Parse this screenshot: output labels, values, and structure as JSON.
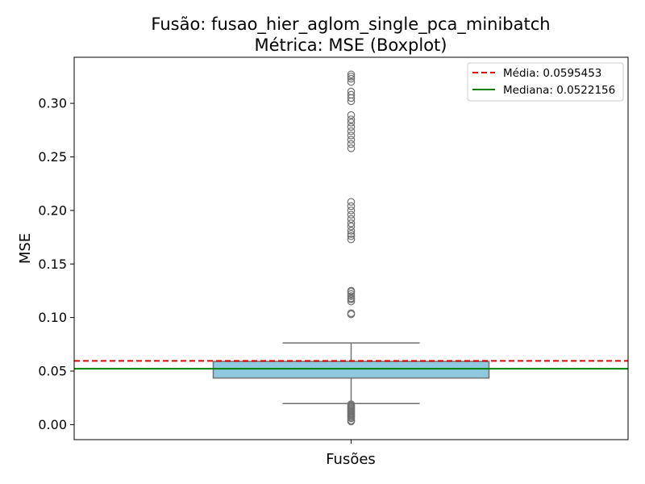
{
  "chart_data": {
    "type": "box",
    "title_line1": "Fusão: fusao_hier_aglom_single_pca_minibatch",
    "title_line2": "Métrica: MSE (Boxplot)",
    "xlabel": "Fusões",
    "ylabel": "MSE",
    "ylim": [
      -0.014,
      0.343
    ],
    "yticks": [
      0.0,
      0.05,
      0.1,
      0.15,
      0.2,
      0.25,
      0.3
    ],
    "ytick_labels": [
      "0.00",
      "0.05",
      "0.10",
      "0.15",
      "0.20",
      "0.25",
      "0.30"
    ],
    "box": {
      "whisker_low": 0.0197,
      "q1": 0.0435,
      "median": 0.0522156,
      "q3": 0.059,
      "whisker_high": 0.0763
    },
    "outliers": [
      0.003,
      0.004,
      0.006,
      0.007,
      0.008,
      0.009,
      0.01,
      0.011,
      0.012,
      0.013,
      0.014,
      0.015,
      0.016,
      0.017,
      0.018,
      0.019,
      0.103,
      0.104,
      0.115,
      0.117,
      0.118,
      0.12,
      0.122,
      0.124,
      0.125,
      0.173,
      0.176,
      0.178,
      0.181,
      0.185,
      0.188,
      0.192,
      0.196,
      0.2,
      0.204,
      0.208,
      0.258,
      0.262,
      0.266,
      0.27,
      0.274,
      0.278,
      0.282,
      0.285,
      0.289,
      0.302,
      0.305,
      0.308,
      0.311,
      0.32,
      0.323,
      0.325,
      0.327
    ],
    "mean_line": 0.0595453,
    "median_line": 0.0522156,
    "legend": [
      {
        "label": "Média: 0.0595453",
        "color": "#e00000",
        "style": "dashed"
      },
      {
        "label": "Mediana: 0.0522156",
        "color": "#008000",
        "style": "solid"
      }
    ],
    "legend_position": "top-right",
    "colors": {
      "box_fill": "#90c8e0",
      "box_edge": "#707070",
      "outlier": "#707070",
      "mean": "#e00000",
      "median": "#008000"
    },
    "grid": false
  }
}
